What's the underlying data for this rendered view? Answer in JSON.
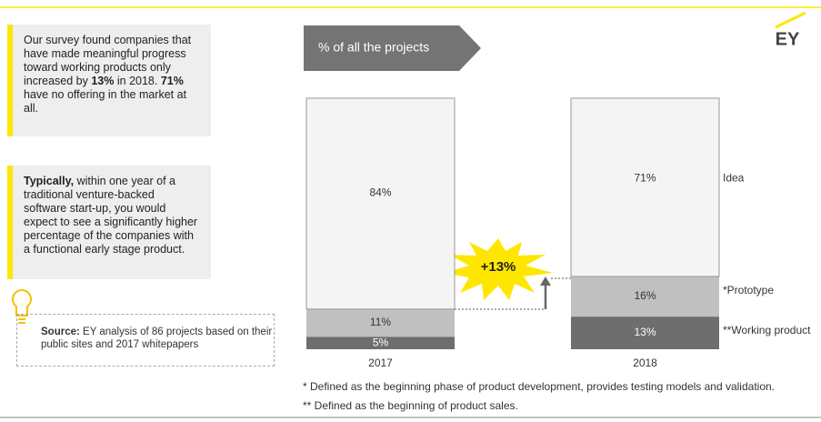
{
  "brand": "EY",
  "box1": [
    "Our survey found companies that have made meaningful progress toward working products only increased by ",
    "13%",
    " in 2018. ",
    "71%",
    " have no offering in the market at all."
  ],
  "box2": [
    "Typically,",
    " within one year of a traditional venture-backed software start-up, you would expect to see a significantly higher percentage of the companies with a functional early stage product."
  ],
  "source": [
    "Source:",
    " EY analysis of 86 projects based on their public sites and 2017 whitepapers"
  ],
  "chart_data": {
    "type": "stacked-bar",
    "title": "% of all the projects",
    "categories": [
      "2017",
      "2018"
    ],
    "series": [
      {
        "name": "**Working product",
        "color": "#6e6e6e",
        "values": [
          5,
          13
        ],
        "value_labels": [
          "5%",
          "13%"
        ]
      },
      {
        "name": "*Prototype",
        "color": "#c0c0c0",
        "values": [
          11,
          16
        ],
        "value_labels": [
          "11%",
          "16%"
        ]
      },
      {
        "name": "Idea",
        "color": "#f4f4f4",
        "values": [
          84,
          71
        ],
        "value_labels": [
          "84%",
          "71%"
        ]
      }
    ],
    "annotation": "+13%",
    "footnotes": [
      "* Defined as the beginning phase of product development, provides testing models and validation.",
      "** Defined as the beginning of product sales."
    ]
  }
}
